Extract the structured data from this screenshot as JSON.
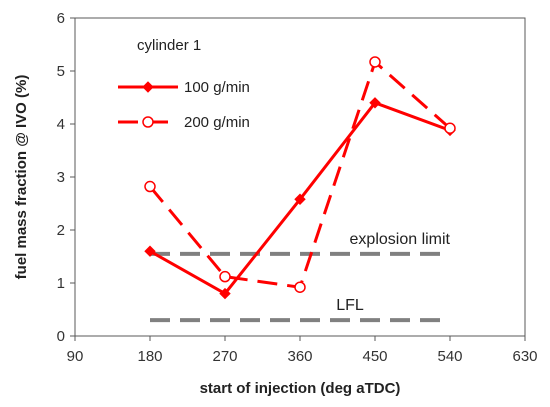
{
  "chart_data": {
    "type": "line",
    "xlabel": "start of injection (deg aTDC)",
    "ylabel": "fuel mass fraction @ IVO (%)",
    "xlim": [
      90,
      630
    ],
    "ylim": [
      0,
      6
    ],
    "xticks": [
      90,
      180,
      270,
      360,
      450,
      540,
      630
    ],
    "yticks": [
      0,
      1,
      2,
      3,
      4,
      5,
      6
    ],
    "grid": false,
    "legend_title": "cylinder 1",
    "legend_position": "top-left",
    "series": [
      {
        "name": "100 g/min",
        "color": "#ff0000",
        "line_style": "solid",
        "marker": "filled-diamond",
        "x": [
          180,
          270,
          360,
          450,
          540
        ],
        "y": [
          1.6,
          0.8,
          2.58,
          4.4,
          3.88
        ]
      },
      {
        "name": "200 g/min",
        "color": "#ff0000",
        "line_style": "dashed",
        "marker": "open-circle",
        "x": [
          180,
          270,
          360,
          450,
          540
        ],
        "y": [
          2.82,
          1.12,
          0.92,
          5.17,
          3.92
        ]
      }
    ],
    "reference_lines": [
      {
        "label": "explosion limit",
        "y": 1.55,
        "x_range": [
          180,
          540
        ],
        "color": "#808080",
        "line_style": "dashed"
      },
      {
        "label": "LFL",
        "y": 0.3,
        "x_range": [
          180,
          540
        ],
        "color": "#808080",
        "line_style": "dashed"
      }
    ]
  }
}
